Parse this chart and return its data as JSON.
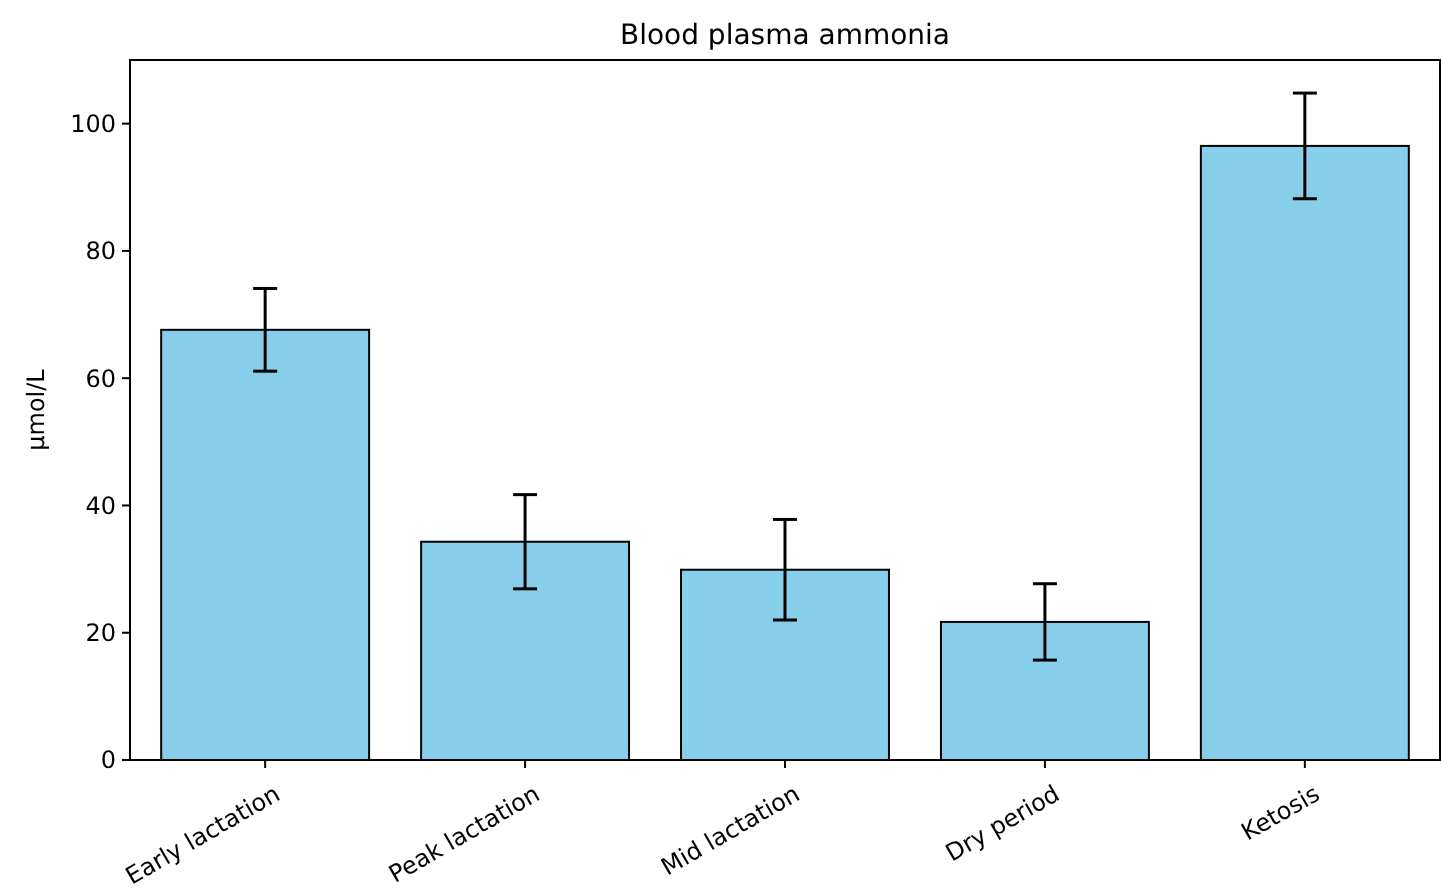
{
  "chart_data": {
    "type": "bar",
    "title": "Blood plasma ammonia",
    "ylabel": "µmol/L",
    "categories": [
      "Early lactation",
      "Peak lactation",
      "Mid lactation",
      "Dry period",
      "Ketosis"
    ],
    "values": [
      67.6,
      34.3,
      29.9,
      21.7,
      96.5
    ],
    "errors": [
      6.5,
      7.4,
      7.9,
      6,
      8.3
    ],
    "color": "#87ceeb",
    "ylim": [
      0,
      110
    ],
    "yticks": [
      0,
      20,
      40,
      60,
      80,
      100
    ]
  }
}
